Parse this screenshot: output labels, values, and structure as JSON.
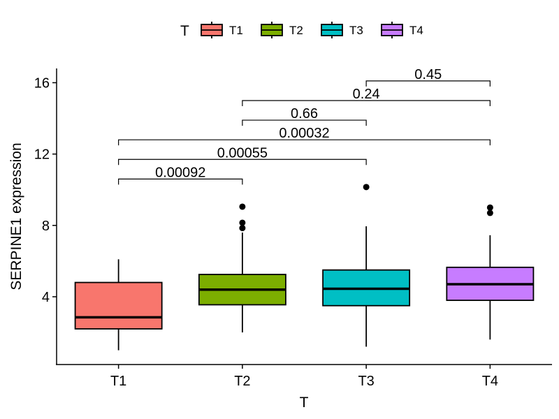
{
  "chart_data": {
    "type": "box",
    "title": "",
    "xlabel": "T",
    "ylabel": "SERPINE1  expression",
    "ylim": [
      0.2,
      16.8
    ],
    "yticks": [
      4,
      8,
      12,
      16
    ],
    "legend": {
      "title": "T",
      "position": "top",
      "entries": [
        "T1",
        "T2",
        "T3",
        "T4"
      ]
    },
    "categories": [
      "T1",
      "T2",
      "T3",
      "T4"
    ],
    "colors": [
      "#F8766D",
      "#7CAE00",
      "#00BFC4",
      "#C77CFF"
    ],
    "boxes": [
      {
        "name": "T1",
        "min": 1.0,
        "q1": 2.2,
        "median": 2.85,
        "q3": 4.8,
        "max": 6.1,
        "outliers": []
      },
      {
        "name": "T2",
        "min": 2.0,
        "q1": 3.55,
        "median": 4.4,
        "q3": 5.25,
        "max": 7.6,
        "outliers": [
          9.05,
          8.15,
          7.85
        ]
      },
      {
        "name": "T3",
        "min": 1.2,
        "q1": 3.5,
        "median": 4.45,
        "q3": 5.5,
        "max": 7.95,
        "outliers": [
          10.15
        ]
      },
      {
        "name": "T4",
        "min": 1.6,
        "q1": 3.8,
        "median": 4.7,
        "q3": 5.65,
        "max": 7.45,
        "outliers": [
          9.0,
          8.7
        ]
      }
    ],
    "comparisons": [
      {
        "groups": [
          "T1",
          "T2"
        ],
        "label": "0.00092",
        "y": 10.6
      },
      {
        "groups": [
          "T1",
          "T3"
        ],
        "label": "0.00055",
        "y": 11.7
      },
      {
        "groups": [
          "T1",
          "T4"
        ],
        "label": "0.00032",
        "y": 12.8
      },
      {
        "groups": [
          "T2",
          "T3"
        ],
        "label": "0.66",
        "y": 13.9
      },
      {
        "groups": [
          "T2",
          "T4"
        ],
        "label": "0.24",
        "y": 15.0
      },
      {
        "groups": [
          "T3",
          "T4"
        ],
        "label": "0.45",
        "y": 16.1
      }
    ]
  }
}
